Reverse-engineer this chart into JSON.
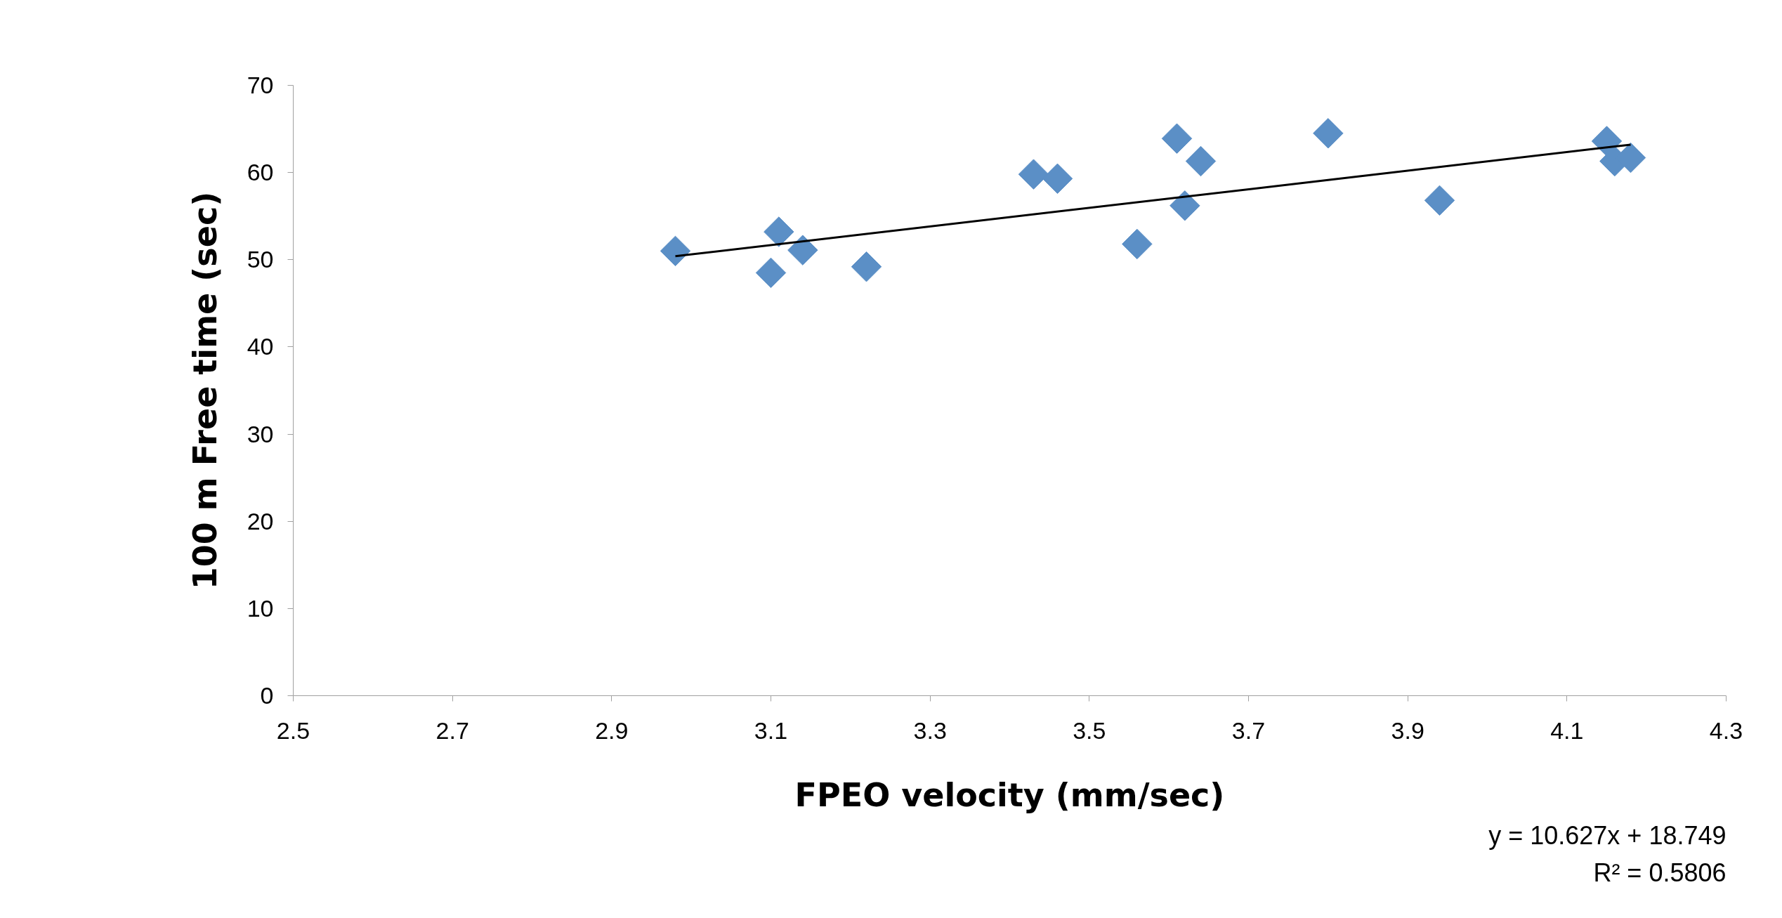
{
  "chart_data": {
    "type": "scatter",
    "xlabel": "FPEO velocity (mm/sec)",
    "ylabel": "100 m Free time (sec)",
    "xlim": [
      2.5,
      4.3
    ],
    "xticks": [
      2.5,
      2.7,
      2.9,
      3.1,
      3.3,
      3.5,
      3.7,
      3.9,
      4.1,
      4.3
    ],
    "ylim": [
      0,
      70
    ],
    "yticks": [
      0,
      10,
      20,
      30,
      40,
      50,
      60,
      70
    ],
    "grid": false,
    "marker": "diamond",
    "series": [
      {
        "color": "#5b8fc6",
        "x": [
          2.98,
          3.11,
          3.1,
          3.14,
          3.22,
          3.43,
          3.46,
          3.56,
          3.61,
          3.62,
          3.64,
          3.8,
          3.94,
          4.15,
          4.16,
          4.18
        ],
        "values": [
          51.0,
          53.2,
          48.5,
          51.1,
          49.2,
          59.8,
          59.3,
          51.8,
          63.9,
          56.2,
          61.3,
          64.5,
          56.8,
          63.6,
          61.3,
          61.7
        ]
      },
      {
        "type": "line",
        "color": "#000000",
        "marker": "none",
        "x": [
          2.98,
          4.18
        ],
        "values": [
          50.4,
          63.2
        ]
      }
    ],
    "annotations": [
      "y = 10.627x + 18.749",
      "R² = 0.5806"
    ]
  }
}
